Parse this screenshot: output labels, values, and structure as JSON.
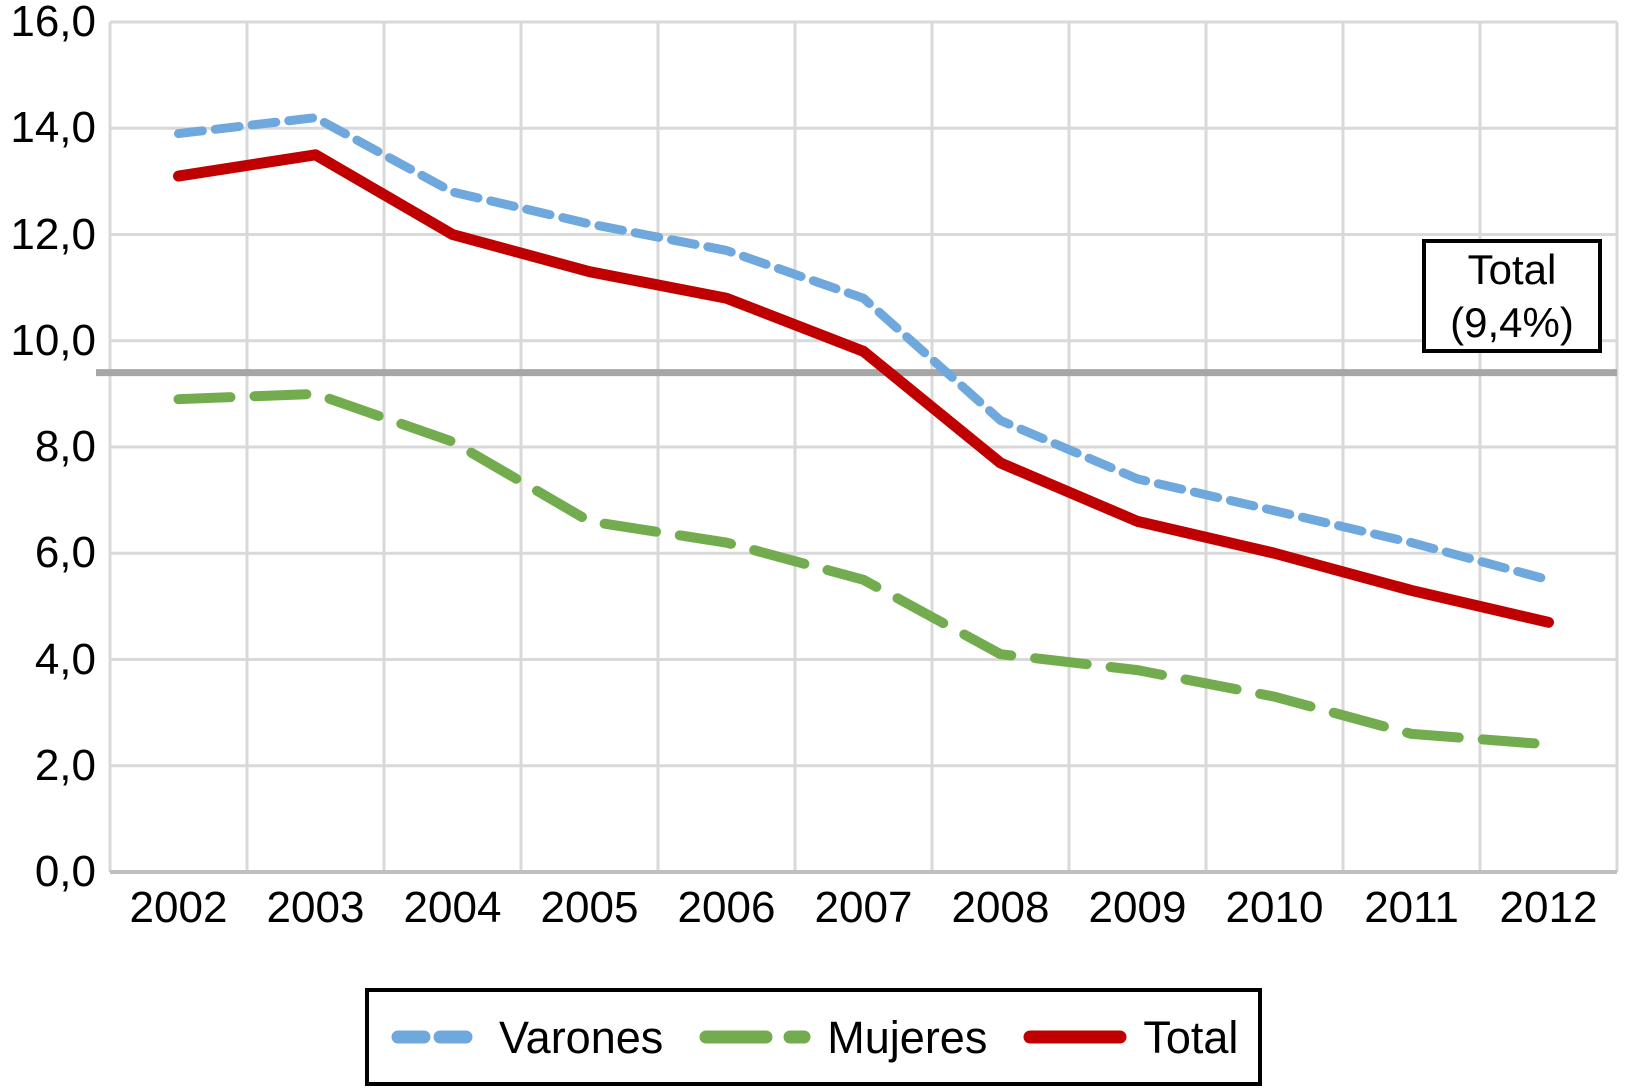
{
  "chart_data": {
    "type": "line",
    "title": "",
    "xlabel": "",
    "ylabel": "",
    "categories": [
      "2002",
      "2003",
      "2004",
      "2005",
      "2006",
      "2007",
      "2008",
      "2009",
      "2010",
      "2011",
      "2012"
    ],
    "series": [
      {
        "name": "Varones",
        "color": "#6FA8DC",
        "line_style": "short-dash",
        "values": [
          13.9,
          14.2,
          12.8,
          12.2,
          11.7,
          10.8,
          8.5,
          7.4,
          6.8,
          6.2,
          5.5
        ]
      },
      {
        "name": "Mujeres",
        "color": "#73AC4F",
        "line_style": "long-dash",
        "values": [
          8.9,
          9.0,
          8.1,
          6.6,
          6.2,
          5.5,
          4.1,
          3.8,
          3.3,
          2.6,
          2.4
        ]
      },
      {
        "name": "Total",
        "color": "#C00000",
        "line_style": "solid",
        "values": [
          13.1,
          13.5,
          12.0,
          11.3,
          10.8,
          9.8,
          7.7,
          6.6,
          6.0,
          5.3,
          4.7
        ]
      }
    ],
    "ylim": [
      0,
      16
    ],
    "ytick_step": 2,
    "ytick_labels_top_to_bottom": [
      "16,0",
      "14,0",
      "12,0",
      "10,0",
      "8,0",
      "6,0",
      "4,0",
      "2,0",
      "0,0"
    ],
    "decimal_separator": ",",
    "grid": true,
    "legend_position": "bottom",
    "reference_line": {
      "value": 9.4,
      "color": "#A6A6A6"
    },
    "annotation": {
      "line1": "Total",
      "line2": "(9,4%)"
    }
  },
  "colors": {
    "background": "#FFFFFF",
    "gridline": "#D9D9D9",
    "axis_line": "#BFBFBF",
    "text": "#000000",
    "box_border": "#000000"
  }
}
